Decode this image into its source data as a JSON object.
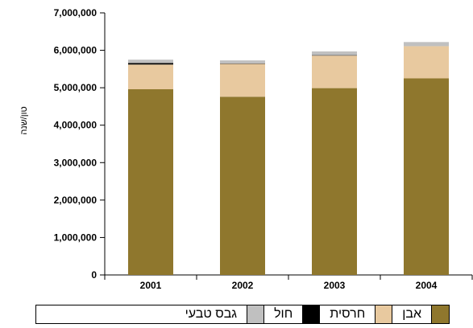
{
  "chart_data": {
    "type": "bar",
    "stacked": true,
    "categories": [
      "2001",
      "2002",
      "2003",
      "2004"
    ],
    "ylabel": "טון/שנה",
    "xlabel": "",
    "title": "",
    "ylim": [
      0,
      7000000
    ],
    "yticks": [
      "0",
      "1,000,000",
      "2,000,000",
      "3,000,000",
      "4,000,000",
      "5,000,000",
      "6,000,000",
      "7,000,000"
    ],
    "ytick_values": [
      0,
      1000000,
      2000000,
      3000000,
      4000000,
      5000000,
      6000000,
      7000000
    ],
    "series": [
      {
        "name": "אבן",
        "color": "#8f772d",
        "values": [
          4960000,
          4760000,
          4990000,
          5250000
        ]
      },
      {
        "name": "חרסית",
        "color": "#e8c99f",
        "values": [
          660000,
          880000,
          870000,
          860000
        ]
      },
      {
        "name": "חול",
        "color": "#000000",
        "values": [
          40000,
          10000,
          10000,
          0
        ]
      },
      {
        "name": "גבס טבעי",
        "color": "#c0c0c0",
        "values": [
          90000,
          80000,
          100000,
          110000
        ]
      }
    ],
    "grid": false,
    "legend_position": "bottom"
  }
}
